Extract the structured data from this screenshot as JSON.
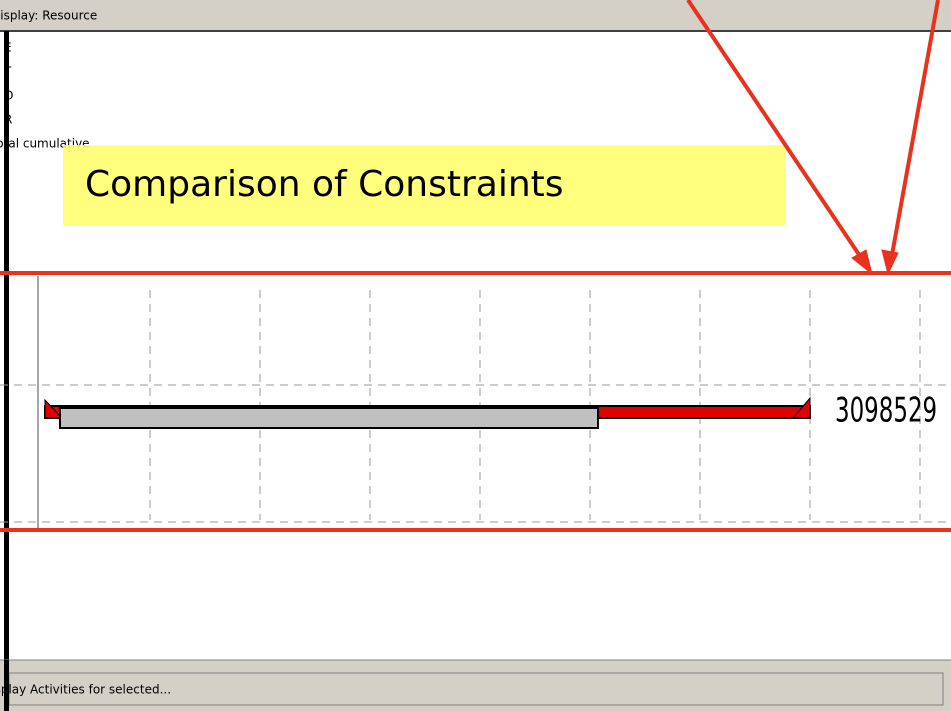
{
  "window": {
    "title": "Display: Resource"
  },
  "list": {
    "items": [
      "E",
      "T",
      "O",
      "R",
      "Total cumulative"
    ]
  },
  "callout": {
    "text": "Comparison of Constraints"
  },
  "gantt": {
    "value_text": "3098529"
  },
  "status": {
    "button": "Display Activities for selected..."
  }
}
